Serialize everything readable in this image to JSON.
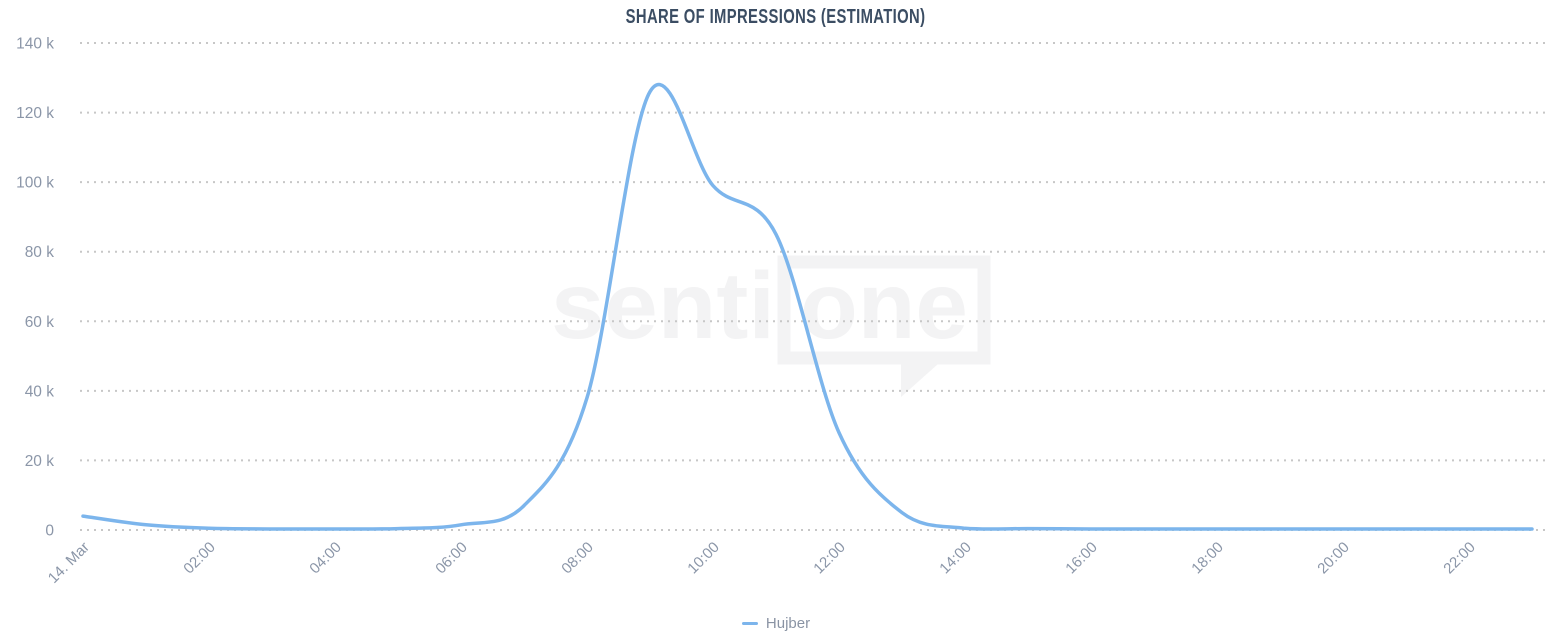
{
  "colors": {
    "series_line": "#7cb5ec",
    "title_text": "#3b4d63",
    "axis_label_text": "#8b96a8",
    "gridline_dots": "#c7c7c7",
    "legend_text": "#8a94a4",
    "watermark": "#f3f3f4",
    "background": "#ffffff"
  },
  "watermark": {
    "text_left": "senti",
    "text_bubble": "one"
  },
  "chart_data": {
    "type": "line",
    "title": "SHARE OF IMPRESSIONS (ESTIMATION)",
    "xlabel": "",
    "ylabel": "",
    "x_date": "14. Mar",
    "x": [
      "00:00",
      "01:00",
      "02:00",
      "03:00",
      "04:00",
      "05:00",
      "06:00",
      "07:00",
      "08:00",
      "09:00",
      "10:00",
      "11:00",
      "12:00",
      "13:00",
      "14:00",
      "15:00",
      "16:00",
      "17:00",
      "18:00",
      "19:00",
      "20:00",
      "21:00",
      "22:00",
      "23:00"
    ],
    "x_tick_labels": [
      {
        "hour": 0,
        "label": "14. Mar"
      },
      {
        "hour": 2,
        "label": "02:00"
      },
      {
        "hour": 4,
        "label": "04:00"
      },
      {
        "hour": 6,
        "label": "06:00"
      },
      {
        "hour": 8,
        "label": "08:00"
      },
      {
        "hour": 10,
        "label": "10:00"
      },
      {
        "hour": 12,
        "label": "12:00"
      },
      {
        "hour": 14,
        "label": "14:00"
      },
      {
        "hour": 16,
        "label": "16:00"
      },
      {
        "hour": 18,
        "label": "18:00"
      },
      {
        "hour": 20,
        "label": "20:00"
      },
      {
        "hour": 22,
        "label": "22:00"
      }
    ],
    "y_ticks": [
      {
        "value": 0,
        "label": "0"
      },
      {
        "value": 20000,
        "label": "20 k"
      },
      {
        "value": 40000,
        "label": "40 k"
      },
      {
        "value": 60000,
        "label": "60 k"
      },
      {
        "value": 80000,
        "label": "80 k"
      },
      {
        "value": 100000,
        "label": "100 k"
      },
      {
        "value": 120000,
        "label": "120 k"
      },
      {
        "value": 140000,
        "label": "140 k"
      }
    ],
    "ylim": [
      0,
      140000
    ],
    "grid": "horizontal-dotted",
    "legend_position": "bottom-center",
    "series": [
      {
        "name": "Hujber",
        "color": "#7cb5ec",
        "values": [
          4000,
          1500,
          500,
          300,
          300,
          400,
          1500,
          7000,
          38000,
          126000,
          99000,
          85000,
          28000,
          5000,
          500,
          400,
          300,
          300,
          300,
          300,
          300,
          300,
          300,
          300
        ]
      }
    ]
  }
}
